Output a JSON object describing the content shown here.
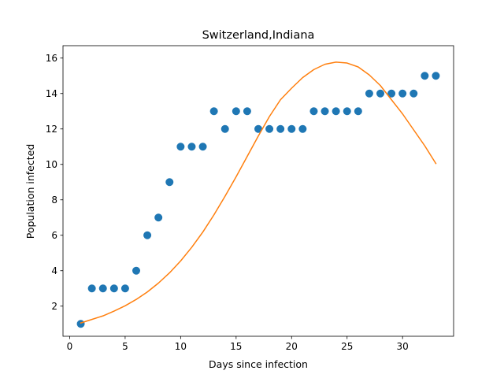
{
  "chart_data": {
    "type": "scatter",
    "title": "Switzerland,Indiana",
    "xlabel": "Days since infection",
    "ylabel": "Population infected",
    "xlim": [
      -0.6,
      34.6
    ],
    "ylim": [
      0.3,
      16.7
    ],
    "xticks": [
      0,
      5,
      10,
      15,
      20,
      25,
      30
    ],
    "yticks": [
      2,
      4,
      6,
      8,
      10,
      12,
      14,
      16
    ],
    "grid": false,
    "legend": "none",
    "series": [
      {
        "kind": "scatter",
        "color": "#1f77b4",
        "x": [
          1,
          2,
          3,
          4,
          5,
          6,
          7,
          8,
          9,
          10,
          11,
          12,
          13,
          14,
          15,
          16,
          17,
          18,
          19,
          20,
          21,
          22,
          23,
          24,
          25,
          26,
          27,
          28,
          29,
          30,
          31,
          32,
          33
        ],
        "y": [
          1,
          3,
          3,
          3,
          3,
          4,
          6,
          7,
          9,
          11,
          11,
          11,
          13,
          12,
          13,
          13,
          12,
          12,
          12,
          12,
          12,
          13,
          13,
          13,
          13,
          13,
          14,
          14,
          14,
          14,
          14,
          15,
          15
        ]
      },
      {
        "kind": "line",
        "color": "#ff7f0e",
        "x": [
          1,
          2,
          3,
          4,
          5,
          6,
          7,
          8,
          9,
          10,
          11,
          12,
          13,
          14,
          15,
          16,
          17,
          18,
          19,
          20,
          21,
          22,
          23,
          24,
          25,
          26,
          27,
          28,
          29,
          30,
          31,
          32,
          33
        ],
        "y": [
          1.05,
          1.25,
          1.45,
          1.72,
          2.02,
          2.38,
          2.8,
          3.3,
          3.88,
          4.55,
          5.32,
          6.18,
          7.15,
          8.2,
          9.3,
          10.45,
          11.6,
          12.7,
          13.65,
          14.3,
          14.9,
          15.35,
          15.65,
          15.77,
          15.72,
          15.5,
          15.05,
          14.45,
          13.65,
          12.85,
          11.95,
          11.05,
          10.05
        ]
      }
    ]
  }
}
